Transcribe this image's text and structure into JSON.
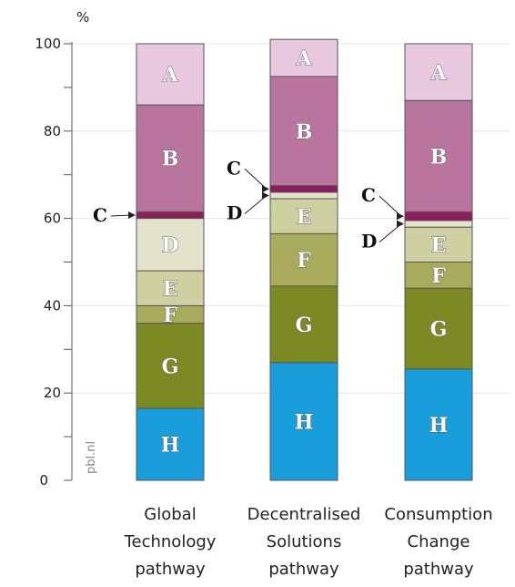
{
  "chart_data": {
    "type": "bar",
    "stacked": true,
    "unit_label": "%",
    "y_ticks": [
      "0",
      "20",
      "40",
      "60",
      "80",
      "100"
    ],
    "ylim": [
      0,
      100
    ],
    "watermark": "pbl.nl",
    "categories": [
      [
        "Global",
        "Technology",
        "pathway"
      ],
      [
        "Decentralised",
        "Solutions",
        "pathway"
      ],
      [
        "Consumption",
        "Change",
        "pathway"
      ]
    ],
    "series": [
      {
        "name": "H",
        "color": "#1a9ddb",
        "values": [
          16.5,
          27,
          25.5
        ]
      },
      {
        "name": "G",
        "color": "#7b8a23",
        "values": [
          19.5,
          17.5,
          18.5
        ]
      },
      {
        "name": "F",
        "color": "#a8ab5c",
        "values": [
          4,
          12,
          6
        ]
      },
      {
        "name": "E",
        "color": "#cfd0a2",
        "values": [
          8,
          8,
          8
        ]
      },
      {
        "name": "D",
        "color": "#e3e3cc",
        "values": [
          12,
          1.5,
          1.5
        ]
      },
      {
        "name": "C",
        "color": "#8c1c5a",
        "values": [
          1.5,
          1.5,
          2
        ]
      },
      {
        "name": "B",
        "color": "#b9759e",
        "values": [
          24.5,
          25,
          25.5
        ]
      },
      {
        "name": "A",
        "color": "#e8c9df",
        "values": [
          14,
          8.5,
          13
        ]
      }
    ]
  }
}
